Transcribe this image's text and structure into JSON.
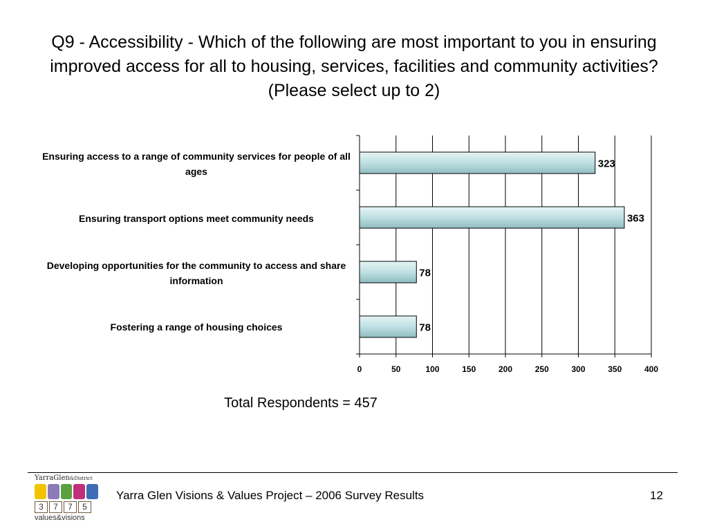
{
  "slide": {
    "title": "Q9 - Accessibility - Which of the following are most important to you in ensuring improved access for all to housing, services, facilities and community activities? (Please select up to 2)",
    "total_respondents": "Total Respondents = 457",
    "footer": "Yarra Glen Visions & Values Project – 2006 Survey Results",
    "page_number": "12"
  },
  "logo": {
    "top_text": "YarraGlen",
    "district_text": "&District",
    "digits": [
      "3",
      "7",
      "7",
      "5"
    ],
    "bottom_text": "values&visions",
    "icon_colors": [
      "#f2c400",
      "#8c7bb8",
      "#5aa03c",
      "#c0307a",
      "#3d6db5"
    ]
  },
  "chart_data": {
    "type": "bar",
    "orientation": "horizontal",
    "categories": [
      "Ensuring access to a range of community services for people of all ages",
      "Ensuring transport options meet community needs",
      "Developing opportunities for the community to access and share information",
      "Fostering a range of housing choices"
    ],
    "values": [
      323,
      363,
      78,
      78
    ],
    "data_labels": [
      "323",
      "363",
      "78",
      "78"
    ],
    "xlim": [
      0,
      400
    ],
    "x_ticks": [
      0,
      50,
      100,
      150,
      200,
      250,
      300,
      350,
      400
    ],
    "grid": true,
    "bar_color": "#bfe0e3",
    "bar_edge_color": "#000000",
    "title": "",
    "xlabel": "",
    "ylabel": ""
  }
}
